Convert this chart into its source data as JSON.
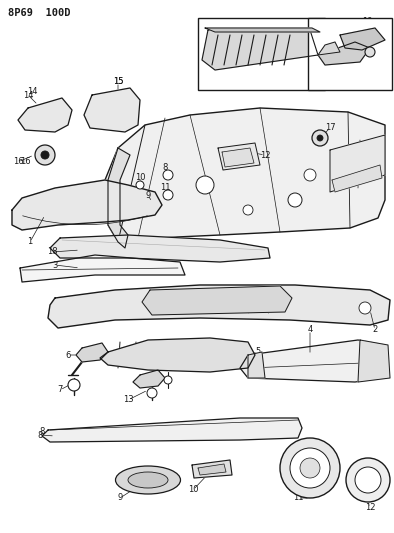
{
  "title": "8P69  100D",
  "bg_color": "#ffffff",
  "line_color": "#1a1a1a",
  "fig_width": 3.94,
  "fig_height": 5.33,
  "dpi": 100
}
